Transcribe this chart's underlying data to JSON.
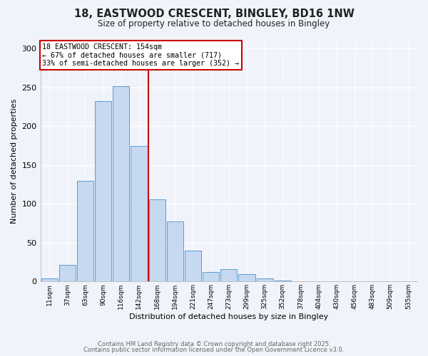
{
  "title_line1": "18, EASTWOOD CRESCENT, BINGLEY, BD16 1NW",
  "title_line2": "Size of property relative to detached houses in Bingley",
  "xlabel": "Distribution of detached houses by size in Bingley",
  "ylabel": "Number of detached properties",
  "bin_labels": [
    "11sqm",
    "37sqm",
    "63sqm",
    "90sqm",
    "116sqm",
    "142sqm",
    "168sqm",
    "194sqm",
    "221sqm",
    "247sqm",
    "273sqm",
    "299sqm",
    "325sqm",
    "352sqm",
    "378sqm",
    "404sqm",
    "430sqm",
    "456sqm",
    "483sqm",
    "509sqm",
    "535sqm"
  ],
  "bar_values": [
    4,
    21,
    130,
    232,
    252,
    175,
    106,
    77,
    40,
    12,
    16,
    9,
    4,
    1,
    0,
    0,
    0,
    0,
    0,
    0,
    0
  ],
  "bar_color": "#c6d9f0",
  "bar_edge_color": "#5b9bd5",
  "vline_x": 5.5,
  "vline_color": "#cc0000",
  "annotation_title": "18 EASTWOOD CRESCENT: 154sqm",
  "annotation_line1": "← 67% of detached houses are smaller (717)",
  "annotation_line2": "33% of semi-detached houses are larger (352) →",
  "annotation_box_color": "#ffffff",
  "annotation_box_edge": "#cc0000",
  "ylim": [
    0,
    310
  ],
  "yticks": [
    0,
    50,
    100,
    150,
    200,
    250,
    300
  ],
  "footer_line1": "Contains HM Land Registry data © Crown copyright and database right 2025.",
  "footer_line2": "Contains public sector information licensed under the Open Government Licence v3.0.",
  "bg_color": "#f0f4fa"
}
